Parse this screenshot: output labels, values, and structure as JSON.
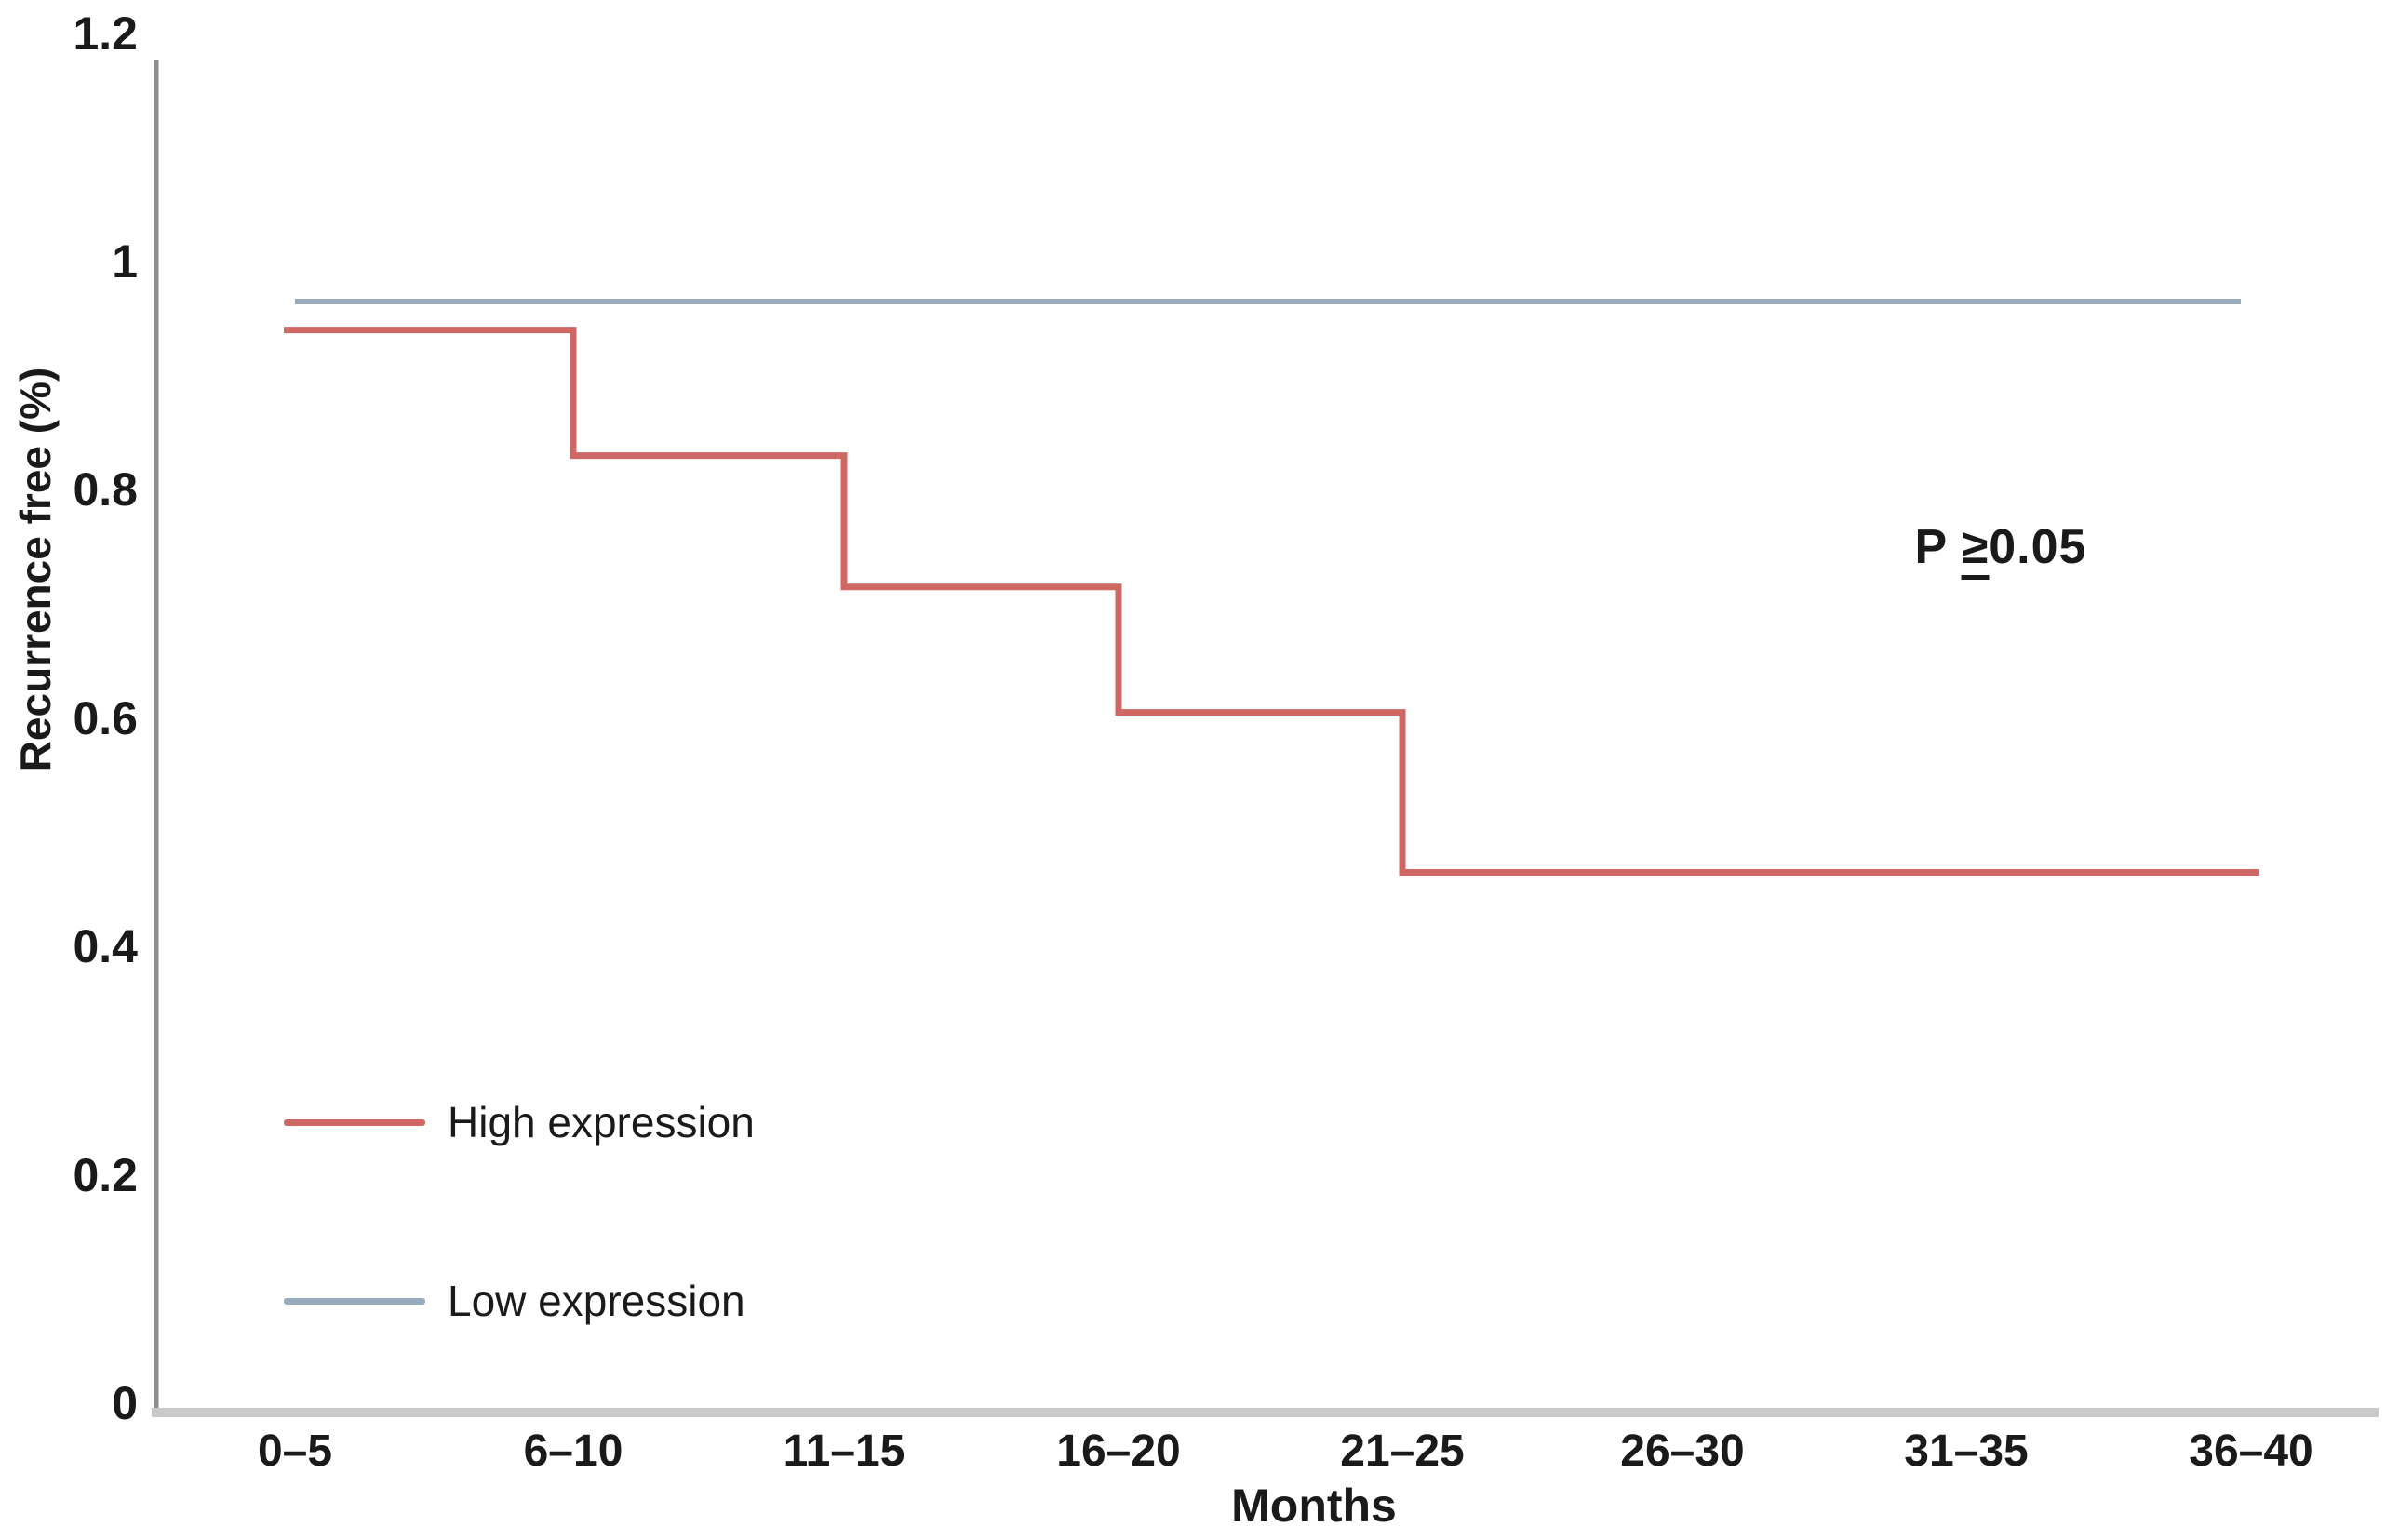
{
  "chart_data": {
    "type": "line",
    "subtype": "step",
    "title": "",
    "xlabel": "Months",
    "ylabel": "Recurrence free (%)",
    "categories": [
      "0–5",
      "6–10",
      "11–15",
      "16–20",
      "21–25",
      "26–30",
      "31–35",
      "36–40"
    ],
    "y_tick_values": [
      0,
      0.2,
      0.4,
      0.6,
      0.8,
      1,
      1.2
    ],
    "y_tick_labels": [
      "0",
      "0.2",
      "0.4",
      "0.6",
      "0.8",
      "1",
      "1.2"
    ],
    "ylim": [
      0,
      1.2
    ],
    "grid": false,
    "legend_position": "inside-bottom-left",
    "series": [
      {
        "name": "High expression",
        "color": "#cf6764",
        "values": [
          0.94,
          0.83,
          0.715,
          0.605,
          0.465,
          0.465,
          0.465,
          0.465
        ]
      },
      {
        "name": "Low expression",
        "color": "#98abbc",
        "values": [
          0.965,
          0.965,
          0.965,
          0.965,
          0.965,
          0.965,
          0.965,
          0.965
        ]
      }
    ],
    "annotation": {
      "prefix": "P",
      "operator": "≥",
      "value": "0.05"
    }
  },
  "legend": {
    "items": [
      {
        "label": "High expression",
        "color": "#cf6764"
      },
      {
        "label": "Low expression",
        "color": "#98abbc"
      }
    ]
  },
  "axis_colors": {
    "y_axis": "#8f8f8f",
    "x_axis": "#c9c9c9"
  }
}
